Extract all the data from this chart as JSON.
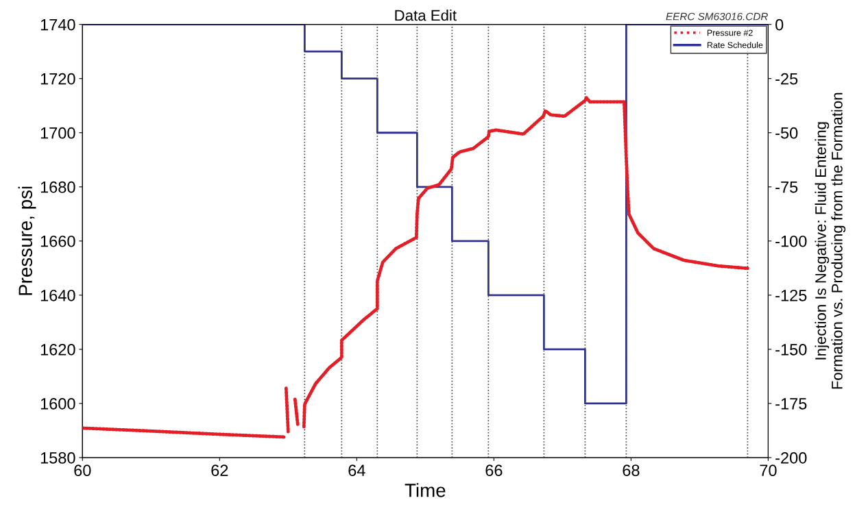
{
  "chart_data": {
    "type": "line",
    "title": "Data Edit",
    "xlabel": "Time",
    "ylabel": "Pressure, psi",
    "y2label": "Injection Is Negative: Fluid Entering\nFormation vs. Producing from the Formation",
    "annotations": [
      "EERC SM63016.CDR"
    ],
    "xlim": [
      60,
      70
    ],
    "xticks": [
      60,
      62,
      64,
      66,
      68,
      70
    ],
    "ylim": [
      1580,
      1740
    ],
    "yticks": [
      1580,
      1600,
      1620,
      1640,
      1660,
      1680,
      1700,
      1720,
      1740
    ],
    "y2lim": [
      -200,
      0
    ],
    "y2ticks": [
      -200,
      -175,
      -150,
      -125,
      -100,
      -75,
      -50,
      -25,
      0
    ],
    "legend": "top right",
    "grid": false,
    "series": [
      {
        "name": "Pressure #2",
        "line_style": "dotted",
        "color": "#e41e26",
        "x": [
          60,
          61,
          62,
          62.95
        ],
        "values": [
          1590.9,
          1589.8,
          1588.6,
          1587.6
        ]
      },
      {
        "line_style": "dotted",
        "color": "#e41e26",
        "x": [
          62.97,
          63.0
        ],
        "values": [
          1605.6,
          1589.6
        ]
      },
      {
        "line_style": "dotted",
        "color": "#e41e26",
        "x": [
          63.1,
          63.14
        ],
        "values": [
          1601.5,
          1592.2
        ]
      },
      {
        "line_style": "dotted",
        "color": "#e41e26",
        "x": [
          63.23,
          63.24,
          63.4,
          63.6,
          63.78,
          63.78,
          64.1,
          64.3,
          64.3,
          64.38,
          64.57,
          64.87,
          64.88,
          64.9,
          65.03,
          65.2,
          65.38,
          65.4,
          65.5,
          65.7,
          65.92,
          65.93,
          66.03,
          66.43,
          66.72,
          66.75,
          66.83,
          67.03,
          67.33,
          67.35,
          67.4,
          67.9,
          67.93,
          67.95,
          67.97,
          68.1,
          68.33,
          68.77,
          69.27,
          69.7
        ],
        "values": [
          1591.4,
          1599.7,
          1607.3,
          1613.2,
          1617.0,
          1623.3,
          1630.9,
          1635.0,
          1645.3,
          1652.2,
          1657.2,
          1661.3,
          1669.9,
          1675.7,
          1679.5,
          1680.8,
          1686.6,
          1690.9,
          1692.9,
          1694.2,
          1698.5,
          1700.5,
          1701.0,
          1699.5,
          1706.1,
          1708.1,
          1706.6,
          1706.1,
          1711.9,
          1712.9,
          1711.4,
          1711.4,
          1690.9,
          1679.0,
          1669.9,
          1663.0,
          1657.2,
          1652.9,
          1650.8,
          1649.9
        ]
      },
      {
        "name": "Rate Schedule",
        "type": "step",
        "axis": "y2",
        "color": "#2e3192",
        "line_style": "solid",
        "x": [
          60,
          63.24,
          63.78,
          64.3,
          64.88,
          65.39,
          65.92,
          66.73,
          67.33,
          67.93,
          70
        ],
        "values": [
          0,
          -12.5,
          -25,
          -50,
          -75,
          -100,
          -125,
          -150,
          -175,
          0,
          0
        ]
      }
    ],
    "ref_lines": [
      {
        "axis": "x",
        "value": 63.24,
        "color": "#444444",
        "line_style": "dotted"
      },
      {
        "axis": "x",
        "value": 63.78,
        "color": "#444444",
        "line_style": "dotted"
      },
      {
        "axis": "x",
        "value": 64.3,
        "color": "#444444",
        "line_style": "dotted"
      },
      {
        "axis": "x",
        "value": 64.88,
        "color": "#444444",
        "line_style": "dotted"
      },
      {
        "axis": "x",
        "value": 65.39,
        "color": "#444444",
        "line_style": "dotted"
      },
      {
        "axis": "x",
        "value": 65.92,
        "color": "#444444",
        "line_style": "dotted"
      },
      {
        "axis": "x",
        "value": 66.73,
        "color": "#444444",
        "line_style": "dotted"
      },
      {
        "axis": "x",
        "value": 67.33,
        "color": "#444444",
        "line_style": "dotted"
      },
      {
        "axis": "x",
        "value": 67.93,
        "color": "#444444",
        "line_style": "dotted"
      },
      {
        "axis": "x",
        "value": 69.7,
        "color": "#444444",
        "line_style": "dotted"
      }
    ]
  }
}
